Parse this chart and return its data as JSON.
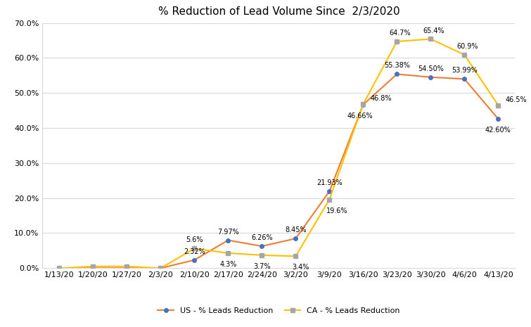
{
  "title": "% Reduction of Lead Volume Since  2/3/2020",
  "x_labels": [
    "1/13/20",
    "1/20/20",
    "1/27/20",
    "2/3/20",
    "2/10/20",
    "2/17/20",
    "2/24/20",
    "3/2/20",
    "3/9/20",
    "3/16/20",
    "3/23/20",
    "3/30/20",
    "4/6/20",
    "4/13/20"
  ],
  "us_values": [
    0.0,
    0.0,
    0.0,
    0.0,
    0.0232,
    0.0797,
    0.0626,
    0.0845,
    0.2193,
    0.4666,
    0.5538,
    0.545,
    0.5399,
    0.426
  ],
  "ca_values": [
    0.0,
    0.005,
    0.005,
    0.0,
    0.056,
    0.043,
    0.037,
    0.034,
    0.196,
    0.468,
    0.647,
    0.654,
    0.609,
    0.465
  ],
  "us_labels": [
    "",
    "",
    "",
    "",
    "2.32%",
    "7.97%",
    "6.26%",
    "8.45%",
    "21.93%",
    "46.66%",
    "55.38%",
    "54.50%",
    "53.99%",
    "42.60%"
  ],
  "ca_labels": [
    "",
    "",
    "",
    "",
    "5.6%",
    "4.3%",
    "3.7%",
    "3.4%",
    "19.6%",
    "46.8%",
    "64.7%",
    "65.4%",
    "60.9%",
    "46.5%"
  ],
  "us_line_color": "#ed7d31",
  "us_marker_face": "#4472c4",
  "us_marker_edge": "#4472c4",
  "ca_line_color": "#ffc000",
  "ca_marker_face": "#a6a6a6",
  "ca_marker_edge": "#a6a6a6",
  "us_marker": "o",
  "ca_marker": "s",
  "legend_us": "US - % Leads Reduction",
  "legend_ca": "CA - % Leads Reduction",
  "ylim": [
    0.0,
    0.7
  ],
  "yticks": [
    0.0,
    0.1,
    0.2,
    0.3,
    0.4,
    0.5,
    0.6,
    0.7
  ],
  "background_color": "#ffffff",
  "grid_color": "#d9d9d9",
  "title_fontsize": 11,
  "label_fontsize": 7,
  "tick_fontsize": 8,
  "legend_fontsize": 8
}
